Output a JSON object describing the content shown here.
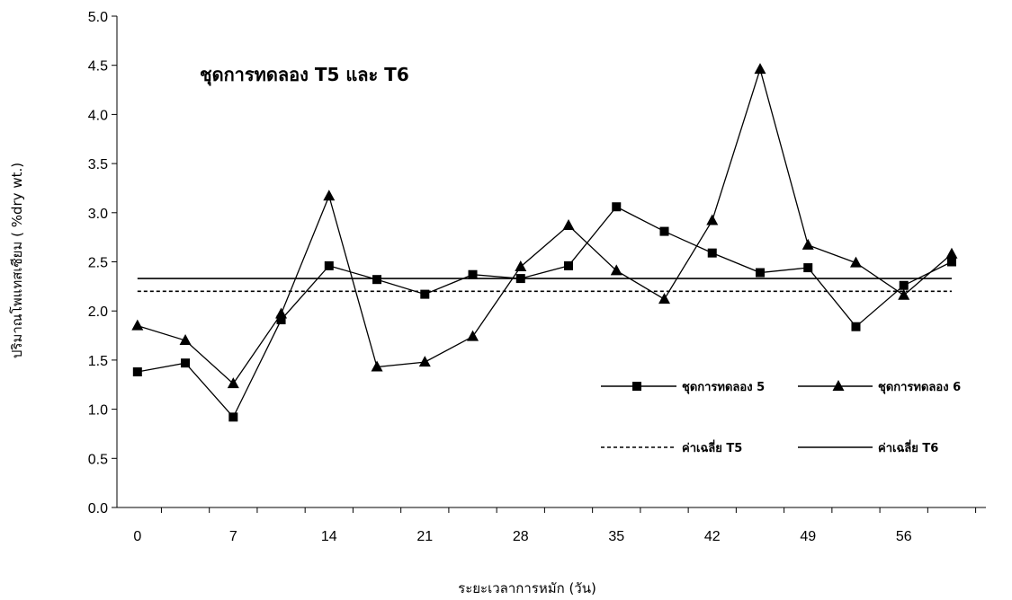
{
  "chart_data": {
    "type": "line",
    "title": "ชุดการทดลอง T5 และ T6",
    "xlabel": "ระยะเวลาการหมัก (วัน)",
    "ylabel": "ปริมาณโพแทสเซียม ( %dry wt.)",
    "ylim": [
      0,
      5
    ],
    "yticks": [
      "0.0",
      "0.5",
      "1.0",
      "1.5",
      "2.0",
      "2.5",
      "3.0",
      "3.5",
      "4.0",
      "4.5",
      "5.0"
    ],
    "xlim": [
      -1.5,
      62
    ],
    "xticks": [
      "0",
      "7",
      "14",
      "21",
      "28",
      "35",
      "42",
      "49",
      "56"
    ],
    "x": [
      0,
      3.5,
      7,
      10.5,
      14,
      17.5,
      21,
      24.5,
      28,
      31.5,
      35,
      38.5,
      42,
      45.5,
      49,
      52.5,
      56,
      59.5
    ],
    "grid": false,
    "legend_position": "bottom-right",
    "series": [
      {
        "name": "ชุดการทดลอง 5",
        "marker": "square",
        "values": [
          1.38,
          1.47,
          0.92,
          1.91,
          2.46,
          2.32,
          2.17,
          2.37,
          2.33,
          2.46,
          3.06,
          2.81,
          2.59,
          2.39,
          2.44,
          1.84,
          2.26,
          2.5
        ]
      },
      {
        "name": "ชุดการทดลอง 6",
        "marker": "triangle",
        "values": [
          1.85,
          1.7,
          1.26,
          1.97,
          3.17,
          1.43,
          1.48,
          1.74,
          2.45,
          2.87,
          2.41,
          2.12,
          2.92,
          4.46,
          2.67,
          2.49,
          2.16,
          2.58
        ]
      }
    ],
    "reference_lines": [
      {
        "name": "ค่าเฉลี่ย T5",
        "value": 2.2,
        "style": "dashed"
      },
      {
        "name": "ค่าเฉลี่ย T6",
        "value": 2.33,
        "style": "solid"
      }
    ]
  }
}
